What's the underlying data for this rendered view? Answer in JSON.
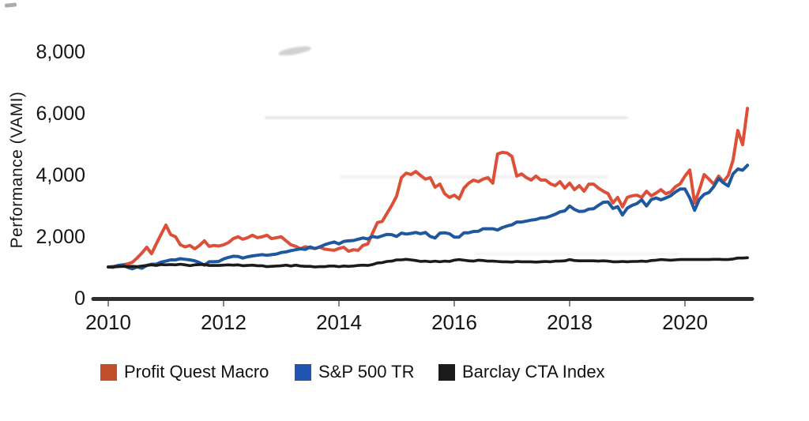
{
  "page": {
    "background": "#ffffff"
  },
  "chart_data": {
    "type": "line",
    "title": "",
    "xlabel": "",
    "ylabel": "Performance (VAMI)",
    "ylim": [
      0,
      8000
    ],
    "xlim": [
      2010.0,
      2021.2
    ],
    "grid": false,
    "legend_position": "bottom",
    "x_start_year": 2010,
    "points_per_year": 12,
    "axis_color": "#2e2e2e",
    "tick_color": "#8a8a8a",
    "text_color": "#151515",
    "yticks": [
      {
        "value": 0,
        "label": "0"
      },
      {
        "value": 2000,
        "label": "2,000"
      },
      {
        "value": 4000,
        "label": "4,000"
      },
      {
        "value": 6000,
        "label": "6,000"
      },
      {
        "value": 8000,
        "label": "8,000"
      }
    ],
    "xticks": [
      {
        "value": 2010,
        "label": "2010"
      },
      {
        "value": 2012,
        "label": "2012"
      },
      {
        "value": 2014,
        "label": "2014"
      },
      {
        "value": 2016,
        "label": "2016"
      },
      {
        "value": 2018,
        "label": "2018"
      },
      {
        "value": 2020,
        "label": "2020"
      }
    ],
    "series": [
      {
        "name": "Profit Quest Macro",
        "line_color": "#dd4f37",
        "swatch_color": "#c14f2e",
        "line_width": 4,
        "values": [
          1000,
          1015,
          1040,
          1070,
          1100,
          1150,
          1290,
          1450,
          1640,
          1430,
          1750,
          2060,
          2360,
          2050,
          1980,
          1720,
          1650,
          1700,
          1590,
          1700,
          1850,
          1670,
          1700,
          1680,
          1720,
          1790,
          1920,
          1980,
          1900,
          1950,
          2030,
          1950,
          1980,
          2030,
          1920,
          1950,
          1980,
          1850,
          1720,
          1670,
          1590,
          1660,
          1620,
          1600,
          1640,
          1580,
          1560,
          1540,
          1600,
          1640,
          1510,
          1560,
          1540,
          1700,
          1750,
          2100,
          2440,
          2480,
          2740,
          3000,
          3300,
          3900,
          4050,
          4000,
          4100,
          3970,
          3850,
          3900,
          3590,
          3690,
          3380,
          3260,
          3330,
          3210,
          3560,
          3720,
          3820,
          3770,
          3850,
          3900,
          3720,
          4670,
          4720,
          4700,
          4590,
          3950,
          4020,
          3900,
          3820,
          3950,
          3820,
          3820,
          3700,
          3640,
          3770,
          3560,
          3720,
          3510,
          3640,
          3460,
          3690,
          3690,
          3560,
          3460,
          3380,
          3080,
          3260,
          2950,
          3260,
          3310,
          3330,
          3260,
          3460,
          3310,
          3400,
          3510,
          3380,
          3430,
          3600,
          3700,
          3950,
          4150,
          3080,
          3510,
          4000,
          3850,
          3690,
          3950,
          3770,
          3970,
          4460,
          5430,
          4970,
          6150
        ]
      },
      {
        "name": "S&P 500 TR",
        "line_color": "#1f589f",
        "swatch_color": "#2254b2",
        "line_width": 4,
        "values": [
          1000,
          990,
          1050,
          1070,
          990,
          940,
          1000,
          960,
          1050,
          1090,
          1090,
          1160,
          1190,
          1230,
          1230,
          1270,
          1250,
          1230,
          1200,
          1140,
          1060,
          1170,
          1170,
          1180,
          1260,
          1310,
          1350,
          1340,
          1290,
          1330,
          1360,
          1380,
          1400,
          1380,
          1400,
          1420,
          1470,
          1490,
          1530,
          1560,
          1590,
          1570,
          1650,
          1600,
          1650,
          1720,
          1770,
          1810,
          1750,
          1830,
          1850,
          1860,
          1900,
          1940,
          1910,
          1990,
          1960,
          2010,
          2060,
          2050,
          1990,
          2100,
          2070,
          2090,
          2120,
          2080,
          2120,
          1990,
          1940,
          2100,
          2110,
          2080,
          1970,
          1970,
          2110,
          2110,
          2150,
          2160,
          2240,
          2240,
          2240,
          2200,
          2280,
          2330,
          2370,
          2460,
          2460,
          2490,
          2520,
          2540,
          2590,
          2600,
          2650,
          2710,
          2790,
          2820,
          2980,
          2870,
          2800,
          2810,
          2880,
          2890,
          3000,
          3100,
          3110,
          2900,
          2960,
          2690,
          2910,
          3000,
          3060,
          3180,
          2980,
          3190,
          3240,
          3180,
          3240,
          3310,
          3430,
          3530,
          3530,
          3240,
          2840,
          3200,
          3360,
          3420,
          3610,
          3870,
          3730,
          3630,
          4020,
          4180,
          4140,
          4300
        ]
      },
      {
        "name": "Barclay CTA Index",
        "line_color": "#1b1b1b",
        "swatch_color": "#1b1b1b",
        "line_width": 3.6,
        "values": [
          1000,
          1000,
          1010,
          1020,
          1010,
          1020,
          1010,
          1030,
          1050,
          1070,
          1050,
          1080,
          1070,
          1080,
          1070,
          1090,
          1070,
          1040,
          1070,
          1080,
          1080,
          1050,
          1050,
          1050,
          1060,
          1070,
          1060,
          1070,
          1040,
          1050,
          1060,
          1040,
          1040,
          1010,
          1020,
          1030,
          1040,
          1060,
          1030,
          1060,
          1030,
          1020,
          1020,
          1000,
          1010,
          1010,
          1030,
          1030,
          1010,
          1030,
          1020,
          1030,
          1050,
          1060,
          1050,
          1080,
          1130,
          1140,
          1180,
          1190,
          1230,
          1230,
          1250,
          1230,
          1210,
          1180,
          1190,
          1170,
          1190,
          1170,
          1190,
          1180,
          1220,
          1240,
          1220,
          1200,
          1190,
          1220,
          1210,
          1190,
          1190,
          1180,
          1170,
          1170,
          1160,
          1180,
          1170,
          1170,
          1170,
          1160,
          1170,
          1180,
          1170,
          1190,
          1190,
          1200,
          1240,
          1210,
          1200,
          1200,
          1200,
          1200,
          1190,
          1200,
          1190,
          1170,
          1170,
          1180,
          1170,
          1180,
          1180,
          1190,
          1180,
          1210,
          1220,
          1240,
          1230,
          1220,
          1230,
          1240,
          1240,
          1240,
          1240,
          1240,
          1240,
          1240,
          1250,
          1250,
          1240,
          1240,
          1260,
          1290,
          1290,
          1300
        ]
      }
    ]
  }
}
